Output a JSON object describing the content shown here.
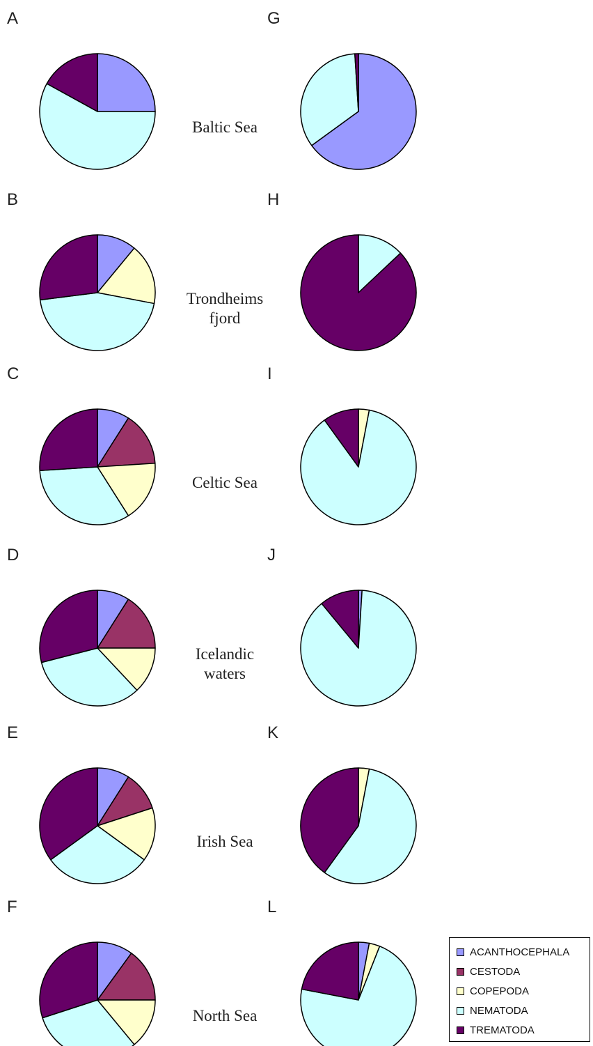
{
  "chart_data": {
    "type": "pie",
    "categories": [
      "ACANTHOCEPHALA",
      "CESTODA",
      "COPEPODA",
      "NEMATODA",
      "TREMATODA"
    ],
    "colors": {
      "ACANTHOCEPHALA": "#9999ff",
      "CESTODA": "#993366",
      "COPEPODA": "#ffffcc",
      "NEMATODA": "#ccffff",
      "TREMATODA": "#660066"
    },
    "legend_position": "bottom-right",
    "panels": [
      {
        "letter": "A",
        "region": "Baltic Sea",
        "values": [
          25,
          0,
          0,
          58,
          17
        ]
      },
      {
        "letter": "G",
        "region": "",
        "values": [
          65,
          0,
          0,
          34,
          1
        ]
      },
      {
        "letter": "B",
        "region": "Trondheims fjord",
        "values": [
          11,
          0,
          17,
          45,
          27
        ]
      },
      {
        "letter": "H",
        "region": "",
        "values": [
          0,
          0,
          0,
          13,
          87
        ]
      },
      {
        "letter": "C",
        "region": "Celtic Sea",
        "values": [
          9,
          15,
          17,
          33,
          26
        ]
      },
      {
        "letter": "I",
        "region": "",
        "values": [
          0,
          0,
          3,
          87,
          10
        ]
      },
      {
        "letter": "D",
        "region": "Icelandic waters",
        "values": [
          9,
          16,
          13,
          33,
          29
        ]
      },
      {
        "letter": "J",
        "region": "",
        "values": [
          1,
          0,
          0,
          88,
          11
        ]
      },
      {
        "letter": "E",
        "region": "Irish Sea",
        "values": [
          9,
          11,
          15,
          30,
          35
        ]
      },
      {
        "letter": "K",
        "region": "",
        "values": [
          0,
          0,
          3,
          57,
          40
        ]
      },
      {
        "letter": "F",
        "region": "North Sea",
        "values": [
          10,
          15,
          14,
          31,
          30
        ]
      },
      {
        "letter": "L",
        "region": "",
        "values": [
          3,
          0,
          3,
          72,
          22
        ]
      }
    ]
  }
}
